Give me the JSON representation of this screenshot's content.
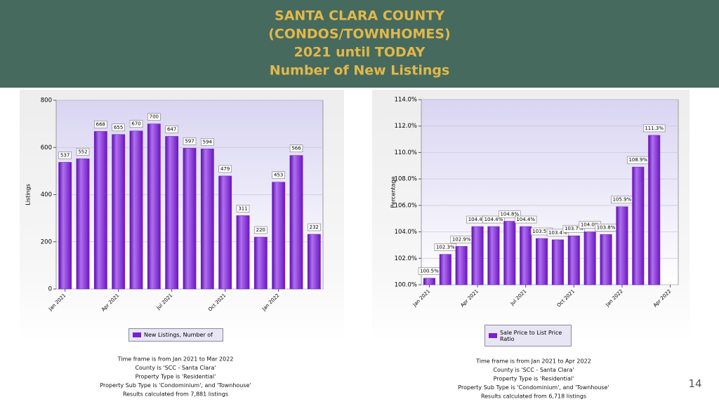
{
  "header": {
    "lines": [
      "SANTA CLARA COUNTY",
      "(CONDOS/TOWNHOMES)",
      "2021 until TODAY",
      "Number of New Listings"
    ]
  },
  "page_number": "14",
  "chart_data": [
    {
      "type": "bar",
      "y_label": "Listings",
      "categories": [
        "Jan 2021",
        null,
        null,
        "Apr 2021",
        null,
        null,
        "Jul 2021",
        null,
        null,
        "Oct 2021",
        null,
        null,
        "Jan 2022",
        null,
        null
      ],
      "series": [
        {
          "name": "New Listings, Number of",
          "color": "#7a1fd1",
          "values": [
            537,
            552,
            668,
            655,
            670,
            700,
            647,
            597,
            594,
            479,
            311,
            220,
            453,
            566,
            232
          ]
        }
      ],
      "ylim": [
        0,
        800
      ],
      "yticks": [
        0,
        200,
        400,
        600,
        800
      ],
      "grid": true,
      "footnotes": [
        "Time frame is from Jan 2021 to Mar 2022",
        "County is 'SCC - Santa Clara'",
        "Property Type is 'Residential'",
        "Property Sub Type is 'Condominium', and 'Townhouse'",
        "Results calculated from 7,881 listings"
      ]
    },
    {
      "type": "bar",
      "y_label": "Percentage",
      "categories": [
        "Jan 2021",
        null,
        null,
        "Apr 2021",
        null,
        null,
        "Jul 2021",
        null,
        null,
        "Oct 2021",
        null,
        null,
        "Jan 2022",
        null,
        null,
        "Apr 2022"
      ],
      "series": [
        {
          "name": "Sale Price to List Price Ratio",
          "color": "#7a1fd1",
          "values": [
            100.5,
            102.3,
            102.9,
            104.4,
            104.4,
            104.8,
            104.4,
            103.5,
            103.4,
            103.7,
            104.0,
            103.8,
            105.9,
            108.9,
            111.3,
            null
          ],
          "value_labels": [
            "100.5%",
            "102.3%",
            "102.9%",
            "104.4%",
            "104.4%",
            "104.8%",
            "104.4%",
            "103.5%",
            "103.4%",
            "103.7%",
            "104.0%",
            "103.8%",
            "105.9%",
            "108.9%",
            "111.3%",
            null
          ]
        }
      ],
      "ylim": [
        100,
        114
      ],
      "yticks": [
        {
          "value": 100,
          "label": "100.0%"
        },
        {
          "value": 102,
          "label": "102.0%"
        },
        {
          "value": 104,
          "label": "104.0%"
        },
        {
          "value": 106,
          "label": "106.0%"
        },
        {
          "value": 108,
          "label": "108.0%"
        },
        {
          "value": 110,
          "label": "110.0%"
        },
        {
          "value": 112,
          "label": "112.0%"
        },
        {
          "value": 114,
          "label": "114.0%"
        }
      ],
      "grid": true,
      "footnotes": [
        "Time frame is from Jan 2021 to Apr 2022",
        "County is 'SCC - Santa Clara'",
        "Property Type is 'Residential'",
        "Property Sub Type is 'Condominium', and 'Townhouse'",
        "Results calculated from 6,718 listings"
      ]
    }
  ]
}
